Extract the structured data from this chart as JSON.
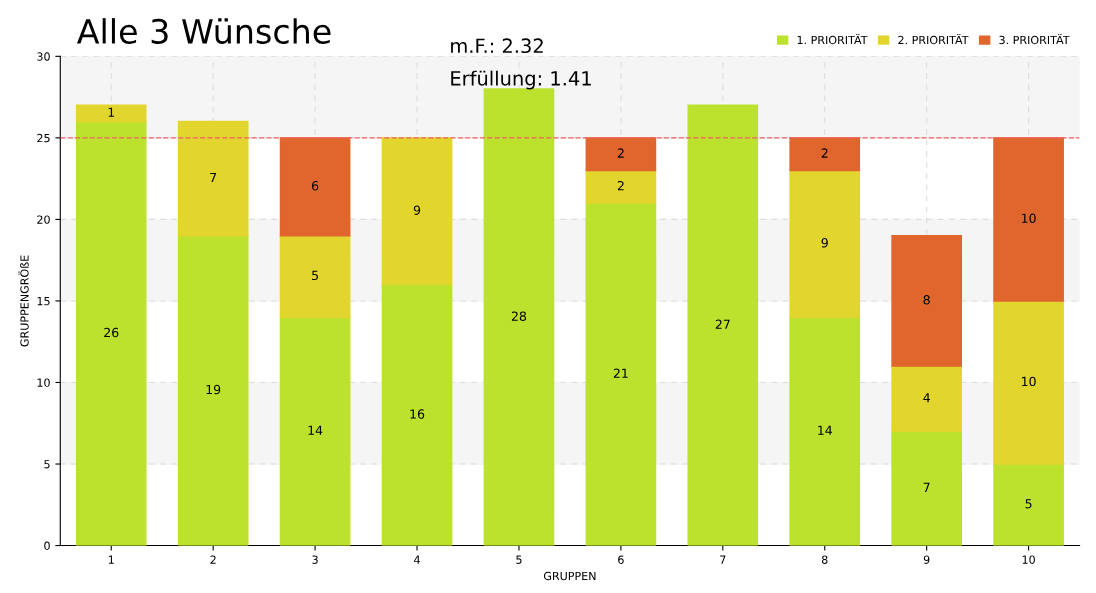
{
  "chart_data": {
    "type": "bar",
    "title": "Alle 3 Wünsche",
    "xlabel": "GRUPPEN",
    "ylabel": "GRUPPENGRÖßE",
    "annotations": [
      "m.F.: 2.32",
      "Erfüllung: 1.41"
    ],
    "categories": [
      "1",
      "2",
      "3",
      "4",
      "5",
      "6",
      "7",
      "8",
      "9",
      "10"
    ],
    "stacked": true,
    "data_labels": true,
    "grid": true,
    "legend": "top right",
    "ylim": [
      0,
      30
    ],
    "yticks": [
      0,
      5,
      10,
      15,
      20,
      25,
      30
    ],
    "ref_lines": [
      {
        "axis": "y",
        "value": 25,
        "color": "#f06060",
        "line_style": "dashed"
      }
    ],
    "series": [
      {
        "name": "1. PRIORITÄT",
        "color": "#bde22e",
        "values": [
          26,
          19,
          14,
          16,
          28,
          21,
          27,
          14,
          7,
          5
        ]
      },
      {
        "name": "2. PRIORITÄT",
        "color": "#e2d62e",
        "values": [
          1,
          7,
          5,
          9,
          null,
          2,
          null,
          9,
          4,
          10
        ]
      },
      {
        "name": "3. PRIORITÄT",
        "color": "#e0662e",
        "values": [
          null,
          null,
          6,
          null,
          null,
          2,
          null,
          2,
          8,
          10
        ]
      }
    ]
  }
}
